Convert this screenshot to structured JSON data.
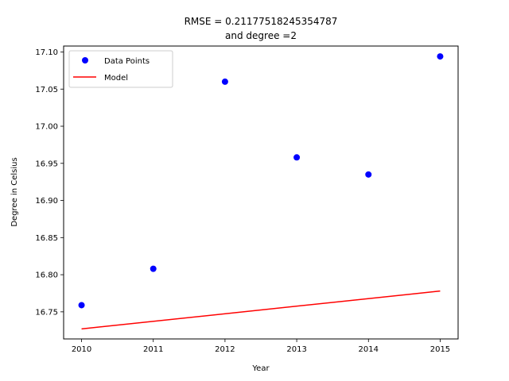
{
  "chart_data": {
    "type": "scatter",
    "title_line1": "RMSE = 0.21177518245354787",
    "title_line2": "and degree =2",
    "xlabel": "Year",
    "ylabel": "Degree in Celsius",
    "xlim": [
      2009.75,
      2015.25
    ],
    "ylim": [
      16.7135,
      17.108
    ],
    "xticks": [
      2010,
      2011,
      2012,
      2013,
      2014,
      2015
    ],
    "xtick_labels": [
      "2010",
      "2011",
      "2012",
      "2013",
      "2014",
      "2015"
    ],
    "yticks": [
      16.75,
      16.8,
      16.85,
      16.9,
      16.95,
      17.0,
      17.05,
      17.1
    ],
    "ytick_labels": [
      "16.75",
      "16.80",
      "16.85",
      "16.90",
      "16.95",
      "17.00",
      "17.05",
      "17.10"
    ],
    "legend_position": "top-left",
    "grid": false,
    "series": [
      {
        "name": "Data Points",
        "kind": "scatter",
        "color": "#0000ff",
        "x": [
          2010,
          2011,
          2012,
          2013,
          2014,
          2015
        ],
        "y": [
          16.759,
          16.808,
          17.06,
          16.958,
          16.935,
          17.094
        ]
      },
      {
        "name": "Model",
        "kind": "line",
        "color": "#ff0000",
        "x": [
          2010,
          2015
        ],
        "y": [
          16.727,
          16.778
        ]
      }
    ]
  }
}
